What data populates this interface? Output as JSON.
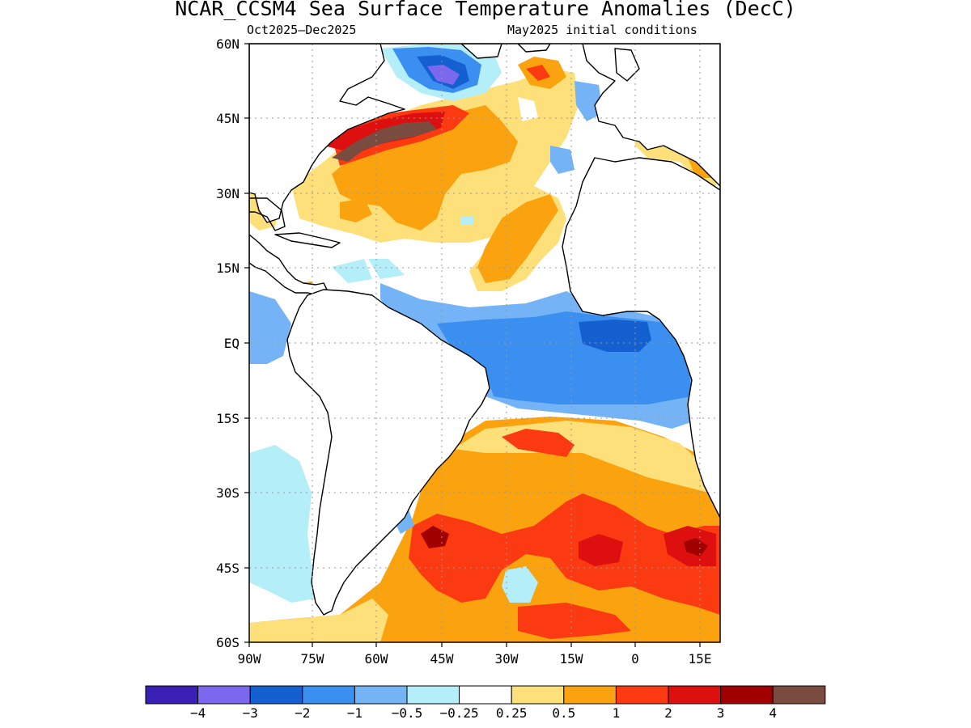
{
  "title": "NCAR_CCSM4 Sea Surface Temperature Anomalies (DecC)",
  "subtitle_left": "Oct2025–Dec2025",
  "subtitle_right": "May2025 initial conditions",
  "lat_labels": [
    "60N",
    "45N",
    "30N",
    "15N",
    "EQ",
    "15S",
    "30S",
    "45S",
    "60S"
  ],
  "lon_labels": [
    "90W",
    "75W",
    "60W",
    "45W",
    "30W",
    "15W",
    "0",
    "15E"
  ],
  "colorbar": {
    "colors": [
      "#3a1fb5",
      "#7b68ee",
      "#1560d0",
      "#3a8ff0",
      "#74b3f5",
      "#b4eef9",
      "#ffffff",
      "#fde07a",
      "#fba30f",
      "#fc3a12",
      "#dd0f0f",
      "#a10000",
      "#7a4c40"
    ],
    "labels": [
      "−4",
      "−3",
      "−2",
      "−1",
      "−0.5",
      "−0.25",
      "0.25",
      "0.5",
      "1",
      "2",
      "3",
      "4"
    ]
  },
  "colors": {
    "land": "#ffffff",
    "coast": "#000000",
    "grid": "#999999"
  }
}
